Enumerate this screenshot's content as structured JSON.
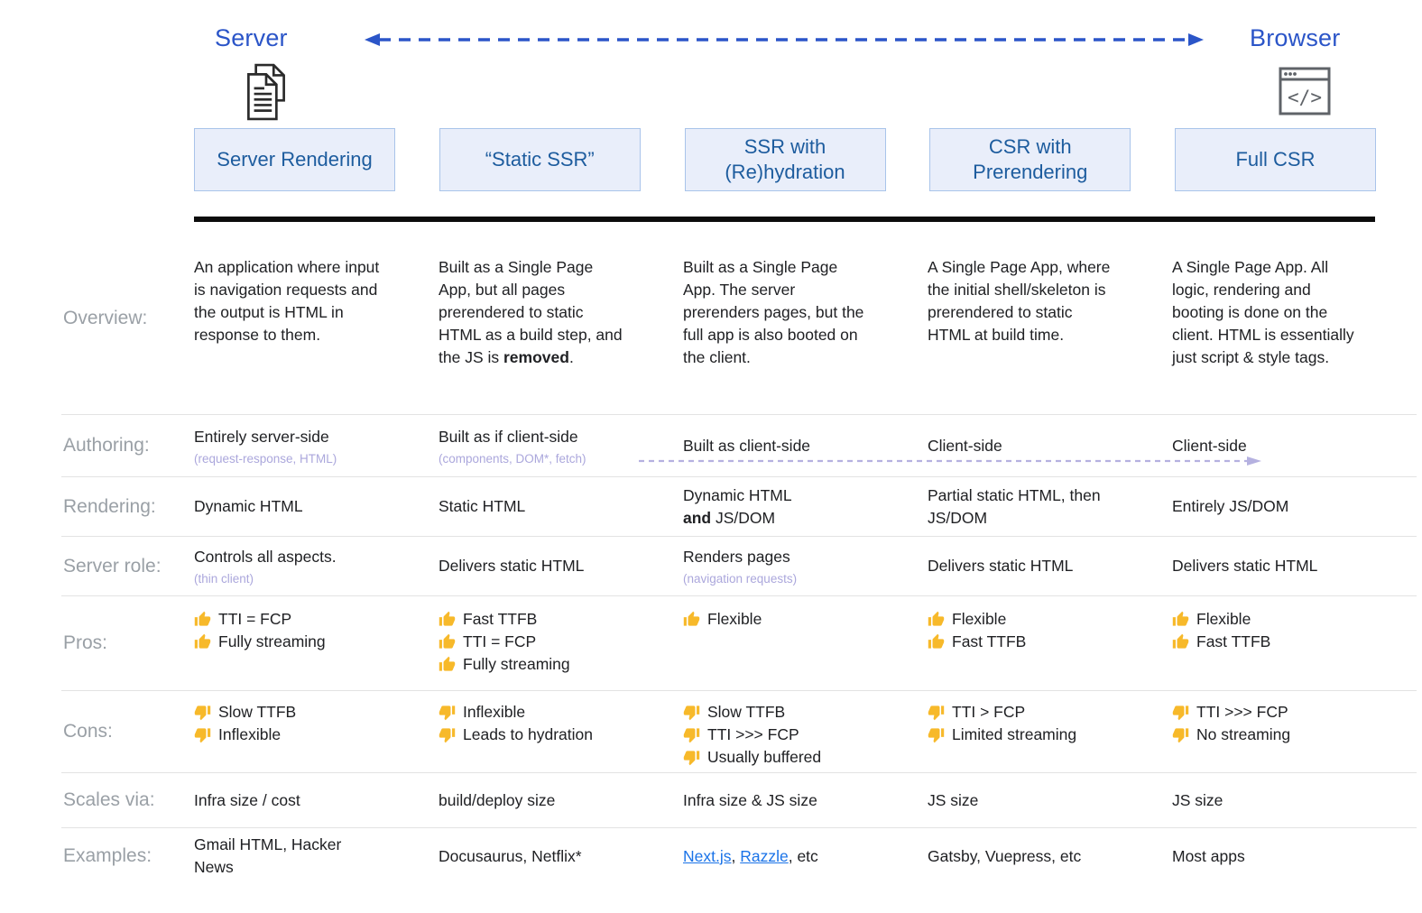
{
  "top": {
    "server_label": "Server",
    "browser_label": "Browser"
  },
  "columns": [
    "Server Rendering",
    "“Static SSR”",
    "SSR with (Re)hydration",
    "CSR with Prerendering",
    "Full CSR"
  ],
  "rows": [
    {
      "key": "overview",
      "label": "Overview:",
      "align": "top",
      "cells": [
        {
          "lines": [
            [
              {
                "t": "An application where input is navigation requests and the output is HTML in response to them."
              }
            ]
          ]
        },
        {
          "lines": [
            [
              {
                "t": "Built as a Single Page App, but all pages prerendered to static HTML as a build step, and the JS is "
              },
              {
                "t": "removed",
                "b": true
              },
              {
                "t": "."
              }
            ]
          ]
        },
        {
          "lines": [
            [
              {
                "t": "Built as a Single Page App. The server prerenders pages, but the full app is also booted on the client."
              }
            ]
          ]
        },
        {
          "lines": [
            [
              {
                "t": "A Single Page App, where the initial shell/skeleton is prerendered to static HTML at build time."
              }
            ]
          ]
        },
        {
          "lines": [
            [
              {
                "t": "A Single Page App. All logic, rendering and booting is done on the client. HTML is essentially just script & style tags."
              }
            ]
          ]
        }
      ]
    },
    {
      "key": "authoring",
      "label": "Authoring:",
      "arrow": true,
      "cells": [
        {
          "lines": [
            [
              {
                "t": "Entirely server-side"
              }
            ]
          ],
          "sub": "(request-response, HTML)"
        },
        {
          "lines": [
            [
              {
                "t": "Built as if client-side"
              }
            ]
          ],
          "sub": "(components, DOM*, fetch)"
        },
        {
          "lines": [
            [
              {
                "t": "Built as client-side"
              }
            ]
          ]
        },
        {
          "lines": [
            [
              {
                "t": "Client-side"
              }
            ]
          ]
        },
        {
          "lines": [
            [
              {
                "t": "Client-side"
              }
            ]
          ]
        }
      ]
    },
    {
      "key": "rendering",
      "label": "Rendering:",
      "cells": [
        {
          "lines": [
            [
              {
                "t": "Dynamic HTML"
              }
            ]
          ]
        },
        {
          "lines": [
            [
              {
                "t": "Static HTML"
              }
            ]
          ]
        },
        {
          "lines": [
            [
              {
                "t": "Dynamic HTML"
              }
            ],
            [
              {
                "t": "and",
                "b": true
              },
              {
                "t": " JS/DOM"
              }
            ]
          ]
        },
        {
          "lines": [
            [
              {
                "t": "Partial static HTML, then JS/DOM"
              }
            ]
          ]
        },
        {
          "lines": [
            [
              {
                "t": "Entirely JS/DOM"
              }
            ]
          ]
        }
      ]
    },
    {
      "key": "server-role",
      "label": "Server role:",
      "cells": [
        {
          "lines": [
            [
              {
                "t": "Controls all aspects."
              }
            ]
          ],
          "sub": "(thin client)"
        },
        {
          "lines": [
            [
              {
                "t": "Delivers static HTML"
              }
            ]
          ]
        },
        {
          "lines": [
            [
              {
                "t": "Renders pages"
              }
            ]
          ],
          "sub": "(navigation requests)"
        },
        {
          "lines": [
            [
              {
                "t": "Delivers static HTML"
              }
            ]
          ]
        },
        {
          "lines": [
            [
              {
                "t": "Delivers static HTML"
              }
            ]
          ]
        }
      ]
    },
    {
      "key": "pros",
      "label": "Pros:",
      "align": "top",
      "cells": [
        {
          "items": [
            {
              "icon": "thumbs-up",
              "t": "TTI = FCP"
            },
            {
              "icon": "thumbs-up",
              "t": "Fully streaming"
            }
          ]
        },
        {
          "items": [
            {
              "icon": "thumbs-up",
              "t": "Fast TTFB"
            },
            {
              "icon": "thumbs-up",
              "t": "TTI = FCP"
            },
            {
              "icon": "thumbs-up",
              "t": "Fully streaming"
            }
          ]
        },
        {
          "items": [
            {
              "icon": "thumbs-up",
              "t": "Flexible"
            }
          ]
        },
        {
          "items": [
            {
              "icon": "thumbs-up",
              "t": "Flexible"
            },
            {
              "icon": "thumbs-up",
              "t": "Fast TTFB"
            }
          ]
        },
        {
          "items": [
            {
              "icon": "thumbs-up",
              "t": "Flexible"
            },
            {
              "icon": "thumbs-up",
              "t": "Fast TTFB"
            }
          ]
        }
      ]
    },
    {
      "key": "cons",
      "label": "Cons:",
      "align": "top",
      "cells": [
        {
          "items": [
            {
              "icon": "thumbs-down",
              "t": "Slow TTFB"
            },
            {
              "icon": "thumbs-down",
              "t": "Inflexible"
            }
          ]
        },
        {
          "items": [
            {
              "icon": "thumbs-down",
              "t": "Inflexible"
            },
            {
              "icon": "thumbs-down",
              "t": "Leads to hydration"
            }
          ]
        },
        {
          "items": [
            {
              "icon": "thumbs-down",
              "t": "Slow TTFB"
            },
            {
              "icon": "thumbs-down",
              "t": "TTI >>> FCP"
            },
            {
              "icon": "thumbs-down",
              "t": "Usually buffered"
            }
          ]
        },
        {
          "items": [
            {
              "icon": "thumbs-down",
              "t": "TTI > FCP"
            },
            {
              "icon": "thumbs-down",
              "t": "Limited streaming"
            }
          ]
        },
        {
          "items": [
            {
              "icon": "thumbs-down",
              "t": "TTI >>> FCP"
            },
            {
              "icon": "thumbs-down",
              "t": "No streaming"
            }
          ]
        }
      ]
    },
    {
      "key": "scales-via",
      "label": "Scales via:",
      "cells": [
        {
          "lines": [
            [
              {
                "t": "Infra size / cost"
              }
            ]
          ]
        },
        {
          "lines": [
            [
              {
                "t": "build/deploy size"
              }
            ]
          ]
        },
        {
          "lines": [
            [
              {
                "t": "Infra size & JS size"
              }
            ]
          ]
        },
        {
          "lines": [
            [
              {
                "t": "JS size"
              }
            ]
          ]
        },
        {
          "lines": [
            [
              {
                "t": "JS size"
              }
            ]
          ]
        }
      ]
    },
    {
      "key": "examples",
      "label": "Examples:",
      "cells": [
        {
          "lines": [
            [
              {
                "t": "Gmail HTML, Hacker News"
              }
            ]
          ]
        },
        {
          "lines": [
            [
              {
                "t": "Docusaurus, Netflix*"
              }
            ]
          ]
        },
        {
          "lines": [
            [
              {
                "t": "Next.js",
                "link": true
              },
              {
                "t": ", "
              },
              {
                "t": "Razzle",
                "link": true
              },
              {
                "t": ", etc"
              }
            ]
          ]
        },
        {
          "lines": [
            [
              {
                "t": "Gatsby, Vuepress, etc"
              }
            ]
          ]
        },
        {
          "lines": [
            [
              {
                "t": "Most apps"
              }
            ]
          ]
        }
      ]
    }
  ],
  "colors": {
    "accent_blue": "#2b55c8",
    "header_box_bg": "#e9eefa",
    "header_box_border": "#a9c4ea",
    "header_text": "#1d5c9e",
    "label_gray": "#9aa0a6",
    "body_text": "#202124",
    "subtext_purple": "#aba7dc",
    "link_blue": "#1a73e8",
    "thumb_gold": "#f7b92a",
    "arrow_purple": "#b5b1e0"
  },
  "icons": {
    "server_icon": "document-pages-icon",
    "browser_icon": "browser-window-icon",
    "pro_icon": "thumbs-up-icon",
    "con_icon": "thumbs-down-icon"
  }
}
